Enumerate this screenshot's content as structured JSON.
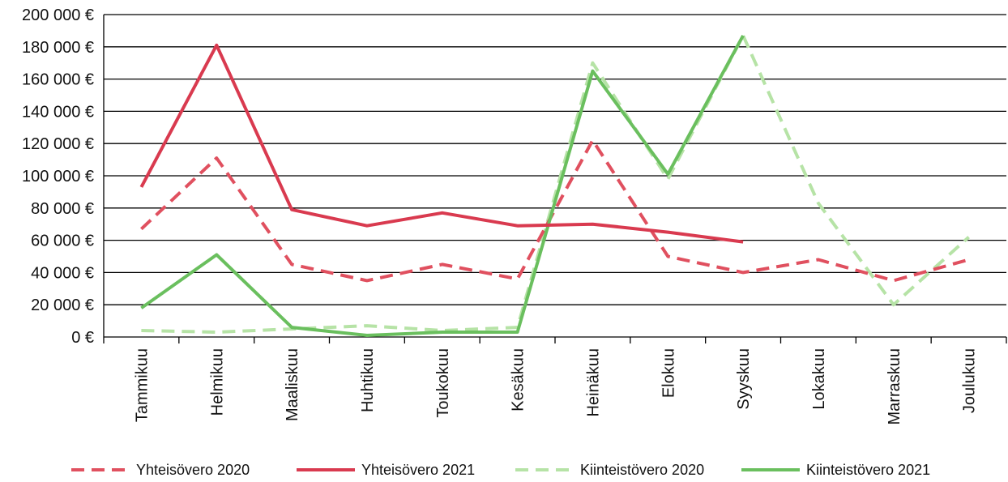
{
  "chart_data": {
    "type": "line",
    "categories": [
      "Tammikuu",
      "Helmikuu",
      "Maaliskuu",
      "Huhtikuu",
      "Toukokuu",
      "Kesäkuu",
      "Heinäkuu",
      "Elokuu",
      "Syyskuu",
      "Lokakuu",
      "Marraskuu",
      "Joulukuu"
    ],
    "y_ticks": [
      "0 €",
      "20 000 €",
      "40 000 €",
      "60 000 €",
      "80 000 €",
      "100 000 €",
      "120 000 €",
      "140 000 €",
      "160 000 €",
      "180 000 €",
      "200 000 €"
    ],
    "ylim": [
      0,
      200000
    ],
    "grid": true,
    "legend_position": "bottom",
    "series": [
      {
        "name": "Yhteisövero 2020",
        "color": "#e0505f",
        "dash": "dashed",
        "values": [
          67000,
          111000,
          45000,
          35000,
          45000,
          36000,
          122000,
          50000,
          40000,
          48000,
          35000,
          48000
        ]
      },
      {
        "name": "Yhteisövero 2021",
        "color": "#d93a4f",
        "dash": "solid",
        "values": [
          93000,
          181000,
          79000,
          69000,
          77000,
          69000,
          70000,
          65000,
          59000,
          null,
          null,
          null
        ]
      },
      {
        "name": "Kiinteistövero 2020",
        "color": "#b6e3a6",
        "dash": "dashed",
        "values": [
          4000,
          3000,
          5000,
          7000,
          4000,
          6000,
          170000,
          98000,
          187000,
          83000,
          20000,
          62000
        ]
      },
      {
        "name": "Kiinteistövero 2021",
        "color": "#6abf5e",
        "dash": "solid",
        "values": [
          18000,
          51000,
          6000,
          1000,
          3000,
          3000,
          165000,
          101000,
          187000,
          null,
          null,
          null
        ]
      }
    ]
  }
}
